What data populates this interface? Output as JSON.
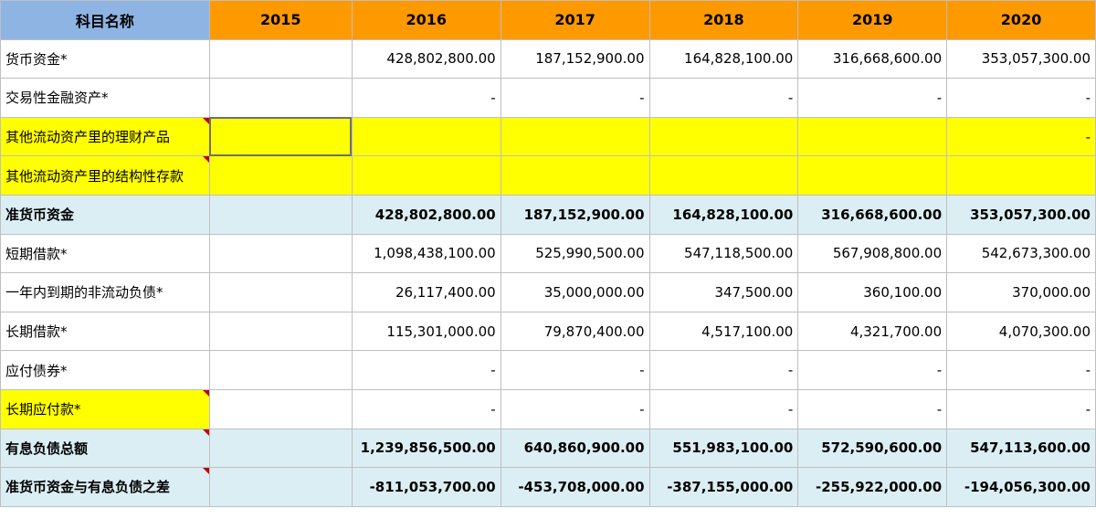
{
  "header": {
    "name": "科目名称",
    "years": [
      "2015",
      "2016",
      "2017",
      "2018",
      "2019",
      "2020"
    ]
  },
  "rows": [
    {
      "label": "货币资金*",
      "values": [
        "",
        "428,802,800.00",
        "187,152,900.00",
        "164,828,100.00",
        "316,668,600.00",
        "353,057,300.00"
      ]
    },
    {
      "label": "交易性金融资产*",
      "values": [
        "",
        "-",
        "-",
        "-",
        "-",
        "-"
      ]
    },
    {
      "label": "其他流动资产里的理财产品",
      "values": [
        "",
        "",
        "",
        "",
        "",
        "-"
      ]
    },
    {
      "label": "其他流动资产里的结构性存款",
      "values": [
        "",
        "",
        "",
        "",
        "",
        ""
      ]
    },
    {
      "label": "准货币资金",
      "values": [
        "",
        "428,802,800.00",
        "187,152,900.00",
        "164,828,100.00",
        "316,668,600.00",
        "353,057,300.00"
      ]
    },
    {
      "label": "短期借款*",
      "values": [
        "",
        "1,098,438,100.00",
        "525,990,500.00",
        "547,118,500.00",
        "567,908,800.00",
        "542,673,300.00"
      ]
    },
    {
      "label": "一年内到期的非流动负债*",
      "values": [
        "",
        "26,117,400.00",
        "35,000,000.00",
        "347,500.00",
        "360,100.00",
        "370,000.00"
      ]
    },
    {
      "label": "长期借款*",
      "values": [
        "",
        "115,301,000.00",
        "79,870,400.00",
        "4,517,100.00",
        "4,321,700.00",
        "4,070,300.00"
      ]
    },
    {
      "label": "应付债券*",
      "values": [
        "",
        "-",
        "-",
        "-",
        "-",
        "-"
      ]
    },
    {
      "label": "长期应付款*",
      "values": [
        "",
        "-",
        "-",
        "-",
        "-",
        "-"
      ]
    },
    {
      "label": "有息负债总额",
      "values": [
        "",
        "1,239,856,500.00",
        "640,860,900.00",
        "551,983,100.00",
        "572,590,600.00",
        "547,113,600.00"
      ]
    },
    {
      "label": "准货币资金与有息负债之差",
      "values": [
        "",
        "-811,053,700.00",
        "-453,708,000.00",
        "-387,155,000.00",
        "-255,922,000.00",
        "-194,056,300.00"
      ]
    }
  ],
  "colors": {
    "header_orange": "#ff9900",
    "header_blue": "#8eb4e3",
    "highlight_yellow": "#ffff00",
    "total_row_blue": "#dbeef4",
    "comment_marker": "#c00000"
  }
}
